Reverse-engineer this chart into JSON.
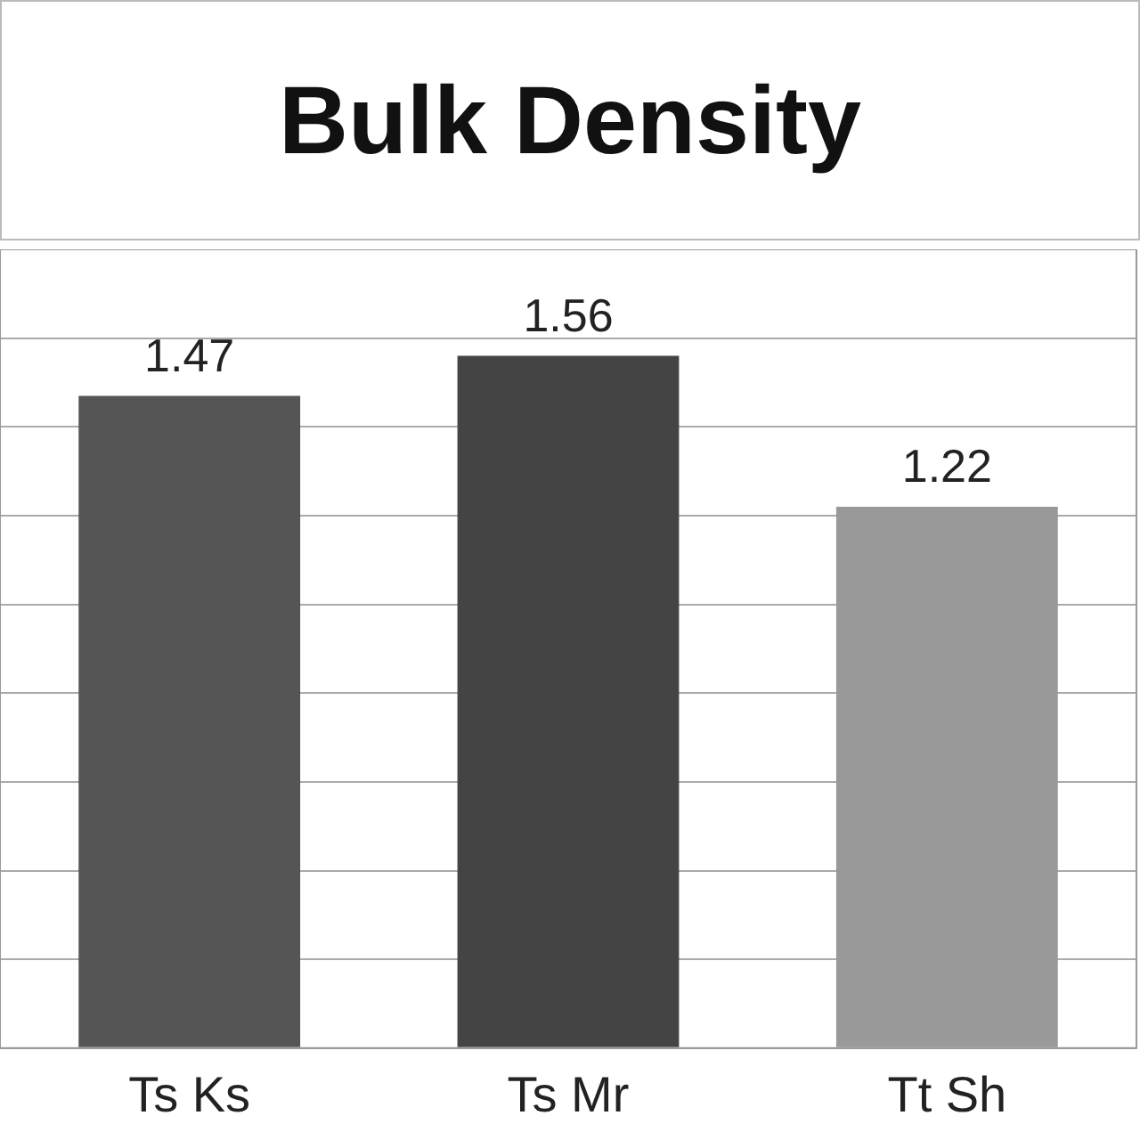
{
  "chart_data": {
    "type": "bar",
    "title": "Bulk Density",
    "categories": [
      "Ts Ks",
      "Ts Mr",
      "Tt Sh"
    ],
    "values": [
      1.47,
      1.56,
      1.22
    ],
    "colors": [
      "#555555",
      "#444444",
      "#999999"
    ],
    "data_labels": true,
    "ylim": [
      0,
      1.8
    ],
    "grid": "y",
    "tick_labels": "x",
    "legend": false
  }
}
